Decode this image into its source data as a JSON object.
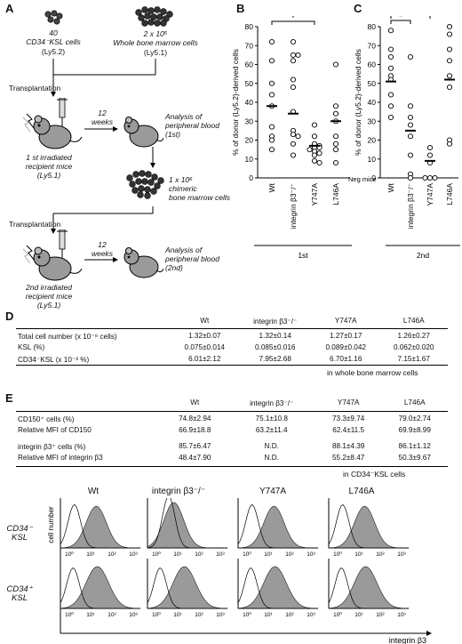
{
  "panels": {
    "A": "A",
    "B": "B",
    "C": "C",
    "D": "D",
    "E": "E"
  },
  "schematic": {
    "donor_count": "40",
    "donor_cells": "CD34⁻KSL cells",
    "donor_strain": "(Ly5.2)",
    "competitor_count": "2 x 10⁵",
    "competitor_cells": "Whole bone marrow cells",
    "competitor_strain": "(Ly5.1)",
    "transplantation1": "Transplantation",
    "recipient1": "1 st irradiated\nrecipient mice\n(Ly5.1)",
    "weeks1": "12\nweeks",
    "analysis1": "Analysis of\nperipheral blood\n(1st)",
    "chimeric": "1 x 10⁶\nchimeric\nbone marrow cells",
    "transplantation2": "Transplantation",
    "recipient2": "2nd irradiated\nrecipient mice\n(Ly5.1)",
    "weeks2": "12\nweeks",
    "analysis2": "Analysis of\nperipheral blood\n(2nd)"
  },
  "chart_data": [
    {
      "type": "scatter",
      "panel": "B",
      "ylabel": "% of donor (Ly5.2)-derived  cells",
      "ylim": [
        0,
        80
      ],
      "yticks": [
        0,
        10,
        20,
        30,
        40,
        50,
        60,
        70,
        80
      ],
      "categories": [
        "Wt",
        "integrin β3⁻/⁻",
        "Y747A",
        "L746A"
      ],
      "xgroup_label": "1st",
      "significance": "*",
      "points": [
        [
          72,
          62,
          50,
          44,
          38,
          27,
          22,
          20,
          15
        ],
        [
          72,
          65,
          65,
          62,
          52,
          48,
          35,
          25,
          23,
          22,
          18,
          12
        ],
        [
          28,
          22,
          18,
          17,
          16,
          16,
          15,
          14,
          13,
          12,
          9,
          8
        ],
        [
          60,
          38,
          34,
          30,
          22,
          18,
          15,
          8
        ]
      ],
      "means": [
        38,
        34,
        17,
        30
      ]
    },
    {
      "type": "scatter",
      "panel": "C",
      "ylabel": "% of donor (Ly5.2)-derived  cells",
      "ylim": [
        0,
        80
      ],
      "yticks": [
        0,
        10,
        20,
        30,
        40,
        50,
        60,
        70,
        80
      ],
      "categories": [
        "Wt",
        "integrin β3⁻/⁻",
        "Y747A",
        "L746A"
      ],
      "xgroup_label": "2nd",
      "neg_label": "Neg mice",
      "significance": [
        "*",
        "*"
      ],
      "points": [
        [
          78,
          68,
          64,
          58,
          54,
          52,
          44,
          38,
          32
        ],
        [
          64,
          38,
          32,
          28,
          22,
          12,
          2,
          0
        ],
        [
          16,
          12,
          8,
          0,
          0,
          0
        ],
        [
          80,
          76,
          68,
          62,
          54,
          48,
          20,
          18
        ]
      ],
      "means": [
        51,
        25,
        9,
        52
      ]
    }
  ],
  "tableD": {
    "headers": [
      "Wt",
      "integrin β3⁻/⁻",
      "Y747A",
      "L746A"
    ],
    "rows": [
      {
        "label": "Total cell number (x 10⁻⁸ cells)",
        "values": [
          "1.32±0.07",
          "1.32±0.14",
          "1.27±0.17",
          "1.26±0.27"
        ]
      },
      {
        "label": "KSL (%)",
        "values": [
          "0.075±0.014",
          "0.085±0.016",
          "0.089±0.042",
          "0.062±0.020"
        ]
      },
      {
        "label": "CD34⁻KSL (x 10⁻³ %)",
        "values": [
          "6.01±2.12",
          "7.95±2.68",
          "6.70±1.16",
          "7.15±1.67"
        ]
      }
    ],
    "footnote": "in whole bone marrow cells"
  },
  "tableE": {
    "headers": [
      "Wt",
      "integrin β3⁻/⁻",
      "Y747A",
      "L746A"
    ],
    "rows": [
      {
        "label": "CD150⁺ cells (%)",
        "values": [
          "74.8±2.94",
          "75.1±10.8",
          "73.3±9.74",
          "79.0±2.74"
        ]
      },
      {
        "label": "Relative MFI of CD150",
        "values": [
          "66.9±18.8",
          "63.2±11.4",
          "62.4±11.5",
          "69.9±8.99"
        ]
      },
      {
        "label": "integrin β3⁺ cells (%)",
        "values": [
          "85.7±6.47",
          "N.D.",
          "88.1±4.39",
          "86.1±1.12"
        ]
      },
      {
        "label": "Relative MFI of integrin β3",
        "values": [
          "48.4±7.90",
          "N.D.",
          "55.2±8.47",
          "50.3±9.67"
        ]
      }
    ],
    "footnote": "in CD34⁻KSL cells"
  },
  "histograms": {
    "columns": [
      "Wt",
      "integrin β3⁻/⁻",
      "Y747A",
      "L746A"
    ],
    "rows": [
      "CD34⁻ KSL",
      "CD34⁺ KSL"
    ],
    "ylabel": "cell number",
    "xlabel": "integrin β3",
    "ticks": [
      "10⁰",
      "10¹",
      "10²",
      "10³"
    ]
  }
}
